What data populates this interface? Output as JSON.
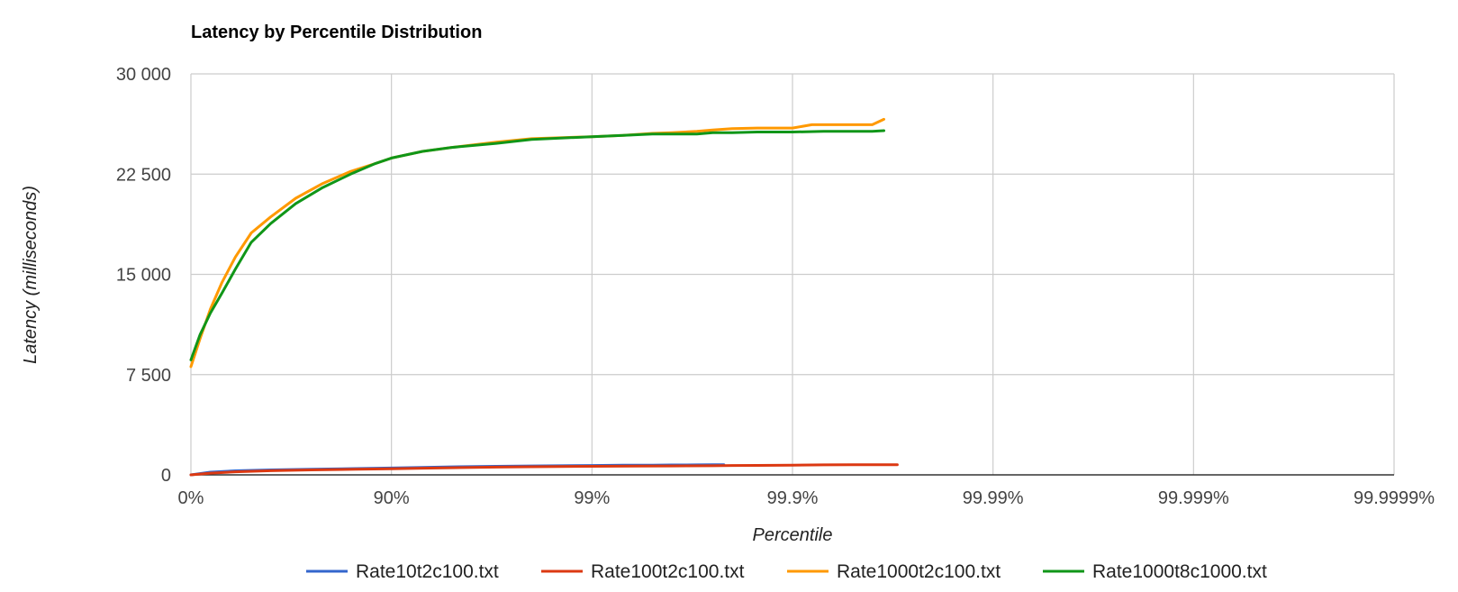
{
  "chart_data": {
    "type": "line",
    "title": "Latency by Percentile Distribution",
    "xlabel": "Percentile",
    "ylabel": "Latency (milliseconds)",
    "x_scale": "log_reciprocal",
    "x_ticks": [
      {
        "value": 0,
        "label": "0%"
      },
      {
        "value": 90,
        "label": "90%"
      },
      {
        "value": 99,
        "label": "99%"
      },
      {
        "value": 99.9,
        "label": "99.9%"
      },
      {
        "value": 99.99,
        "label": "99.99%"
      },
      {
        "value": 99.999,
        "label": "99.999%"
      },
      {
        "value": 99.9999,
        "label": "99.9999%"
      }
    ],
    "y_ticks": [
      {
        "value": 0,
        "label": "0"
      },
      {
        "value": 7500,
        "label": "7 500"
      },
      {
        "value": 15000,
        "label": "15 000"
      },
      {
        "value": 22500,
        "label": "22 500"
      },
      {
        "value": 30000,
        "label": "30 000"
      }
    ],
    "ylim": [
      0,
      30000
    ],
    "grid": true,
    "legend_position": "bottom",
    "series": [
      {
        "name": "Rate10t2c100.txt",
        "color": "#3366cc",
        "points": [
          [
            0,
            0
          ],
          [
            20,
            200
          ],
          [
            40,
            300
          ],
          [
            60,
            370
          ],
          [
            75,
            420
          ],
          [
            85,
            470
          ],
          [
            90,
            510
          ],
          [
            93,
            560
          ],
          [
            95,
            600
          ],
          [
            97,
            640
          ],
          [
            98,
            670
          ],
          [
            99,
            700
          ],
          [
            99.3,
            720
          ],
          [
            99.5,
            730
          ],
          [
            99.6,
            740
          ],
          [
            99.7,
            750
          ],
          [
            99.75,
            755
          ],
          [
            99.78,
            760
          ]
        ]
      },
      {
        "name": "Rate100t2c100.txt",
        "color": "#dc3912",
        "points": [
          [
            0,
            0
          ],
          [
            20,
            130
          ],
          [
            40,
            230
          ],
          [
            60,
            310
          ],
          [
            75,
            370
          ],
          [
            85,
            420
          ],
          [
            90,
            460
          ],
          [
            93,
            500
          ],
          [
            95,
            530
          ],
          [
            97,
            580
          ],
          [
            98,
            610
          ],
          [
            99,
            640
          ],
          [
            99.4,
            660
          ],
          [
            99.6,
            670
          ],
          [
            99.75,
            680
          ],
          [
            99.8,
            700
          ],
          [
            99.85,
            710
          ],
          [
            99.9,
            730
          ],
          [
            99.93,
            745
          ],
          [
            99.95,
            755
          ],
          [
            99.96,
            760
          ],
          [
            99.97,
            765
          ]
        ]
      },
      {
        "name": "Rate1000t2c100.txt",
        "color": "#ff9900",
        "points": [
          [
            0,
            8100
          ],
          [
            10,
            10200
          ],
          [
            20,
            12400
          ],
          [
            30,
            14400
          ],
          [
            40,
            16300
          ],
          [
            50,
            18100
          ],
          [
            60,
            19300
          ],
          [
            70,
            20700
          ],
          [
            78,
            21800
          ],
          [
            84,
            22700
          ],
          [
            88,
            23300
          ],
          [
            90,
            23700
          ],
          [
            93,
            24200
          ],
          [
            95,
            24500
          ],
          [
            97,
            24900
          ],
          [
            98,
            25150
          ],
          [
            99,
            25300
          ],
          [
            99.3,
            25400
          ],
          [
            99.5,
            25550
          ],
          [
            99.6,
            25600
          ],
          [
            99.7,
            25700
          ],
          [
            99.75,
            25800
          ],
          [
            99.8,
            25900
          ],
          [
            99.85,
            25950
          ],
          [
            99.88,
            25950
          ],
          [
            99.9,
            25950
          ],
          [
            99.92,
            26200
          ],
          [
            99.94,
            26200
          ],
          [
            99.95,
            26200
          ],
          [
            99.96,
            26200
          ],
          [
            99.965,
            26600
          ]
        ]
      },
      {
        "name": "Rate1000t8c1000.txt",
        "color": "#109618",
        "points": [
          [
            0,
            8600
          ],
          [
            10,
            10500
          ],
          [
            20,
            12100
          ],
          [
            30,
            13600
          ],
          [
            40,
            15400
          ],
          [
            50,
            17400
          ],
          [
            60,
            18800
          ],
          [
            70,
            20300
          ],
          [
            78,
            21500
          ],
          [
            84,
            22500
          ],
          [
            88,
            23300
          ],
          [
            90,
            23700
          ],
          [
            93,
            24200
          ],
          [
            95,
            24500
          ],
          [
            97,
            24800
          ],
          [
            98,
            25100
          ],
          [
            99,
            25300
          ],
          [
            99.3,
            25400
          ],
          [
            99.5,
            25500
          ],
          [
            99.6,
            25500
          ],
          [
            99.7,
            25500
          ],
          [
            99.75,
            25600
          ],
          [
            99.8,
            25600
          ],
          [
            99.85,
            25650
          ],
          [
            99.9,
            25650
          ],
          [
            99.93,
            25700
          ],
          [
            99.95,
            25700
          ],
          [
            99.96,
            25700
          ],
          [
            99.965,
            25750
          ]
        ]
      }
    ]
  }
}
